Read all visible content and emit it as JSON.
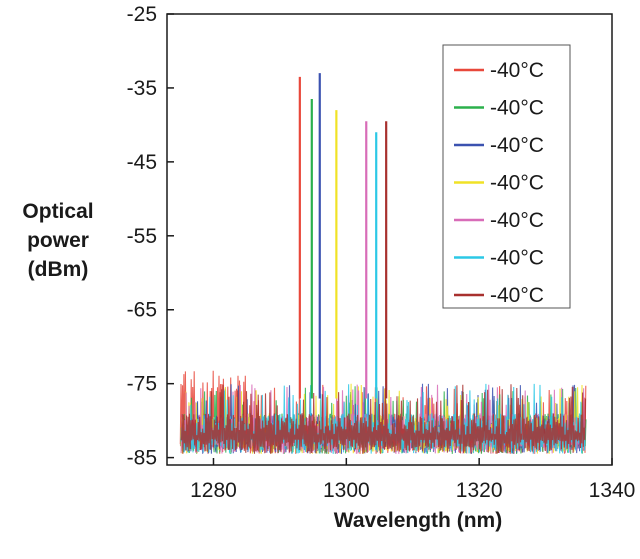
{
  "chart_data": {
    "type": "line",
    "title": "",
    "xlabel": "Wavelength (nm)",
    "ylabel_lines": [
      "Optical",
      "power",
      "(dBm)"
    ],
    "xlim": [
      1273,
      1340
    ],
    "ylim": [
      -86,
      -25
    ],
    "x_ticks": [
      1280,
      1300,
      1320,
      1340
    ],
    "y_ticks": [
      -25,
      -35,
      -45,
      -55,
      -65,
      -75,
      -85
    ],
    "x_tick_labels": [
      "1280",
      "1300",
      "1320",
      "1340"
    ],
    "y_tick_labels": [
      "-25",
      "-35",
      "-45",
      "-55",
      "-65",
      "-75",
      "-85"
    ],
    "grid": false,
    "legend_position": "top-right",
    "noise_floor": {
      "x_range": [
        1275,
        1336
      ],
      "y_range": [
        -86,
        -73
      ]
    },
    "series": [
      {
        "name": "-40°C",
        "color": "#e8483b",
        "peak_x": 1293.0,
        "peak_y": -33.5
      },
      {
        "name": "-40°C",
        "color": "#2bb04c",
        "peak_x": 1294.8,
        "peak_y": -36.5
      },
      {
        "name": "-40°C",
        "color": "#3b52b0",
        "peak_x": 1296.0,
        "peak_y": -33.0
      },
      {
        "name": "-40°C",
        "color": "#f0e226",
        "peak_x": 1298.5,
        "peak_y": -38.0
      },
      {
        "name": "-40°C",
        "color": "#d86cb8",
        "peak_x": 1303.0,
        "peak_y": -39.5
      },
      {
        "name": "-40°C",
        "color": "#2bc8e6",
        "peak_x": 1304.5,
        "peak_y": -41.0
      },
      {
        "name": "-40°C",
        "color": "#a8302e",
        "peak_x": 1306.0,
        "peak_y": -39.5
      }
    ]
  }
}
